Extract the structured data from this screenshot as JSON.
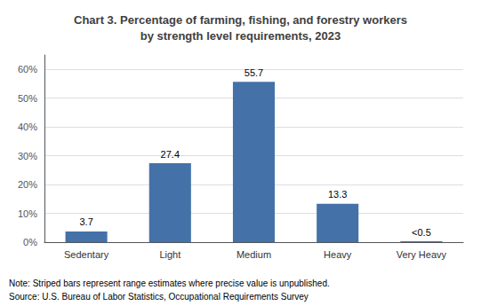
{
  "chart_data": {
    "type": "bar",
    "title": "Chart 3. Percentage of farming, fishing, and forestry workers\nby strength level requirements, 2023",
    "categories": [
      "Sedentary",
      "Light",
      "Medium",
      "Heavy",
      "Very Heavy"
    ],
    "values": [
      3.7,
      27.4,
      55.7,
      13.3,
      0.3
    ],
    "value_labels": [
      "3.7",
      "27.4",
      "55.7",
      "13.3",
      "<0.5"
    ],
    "data_labels": true,
    "color": "#4472a8",
    "ylim": [
      0,
      65
    ],
    "yticks": [
      {
        "value": 0,
        "label": "0%"
      },
      {
        "value": 10,
        "label": "10%"
      },
      {
        "value": 20,
        "label": "20%"
      },
      {
        "value": 30,
        "label": "30%"
      },
      {
        "value": 40,
        "label": "40%"
      },
      {
        "value": 50,
        "label": "50%"
      },
      {
        "value": 60,
        "label": "60%"
      }
    ],
    "grid": true,
    "annotations": [
      "Note: Striped bars represent range estimates where precise value is unpublished.",
      "Source: U.S. Bureau of Labor Statistics, Occupational Requirements Survey"
    ]
  }
}
